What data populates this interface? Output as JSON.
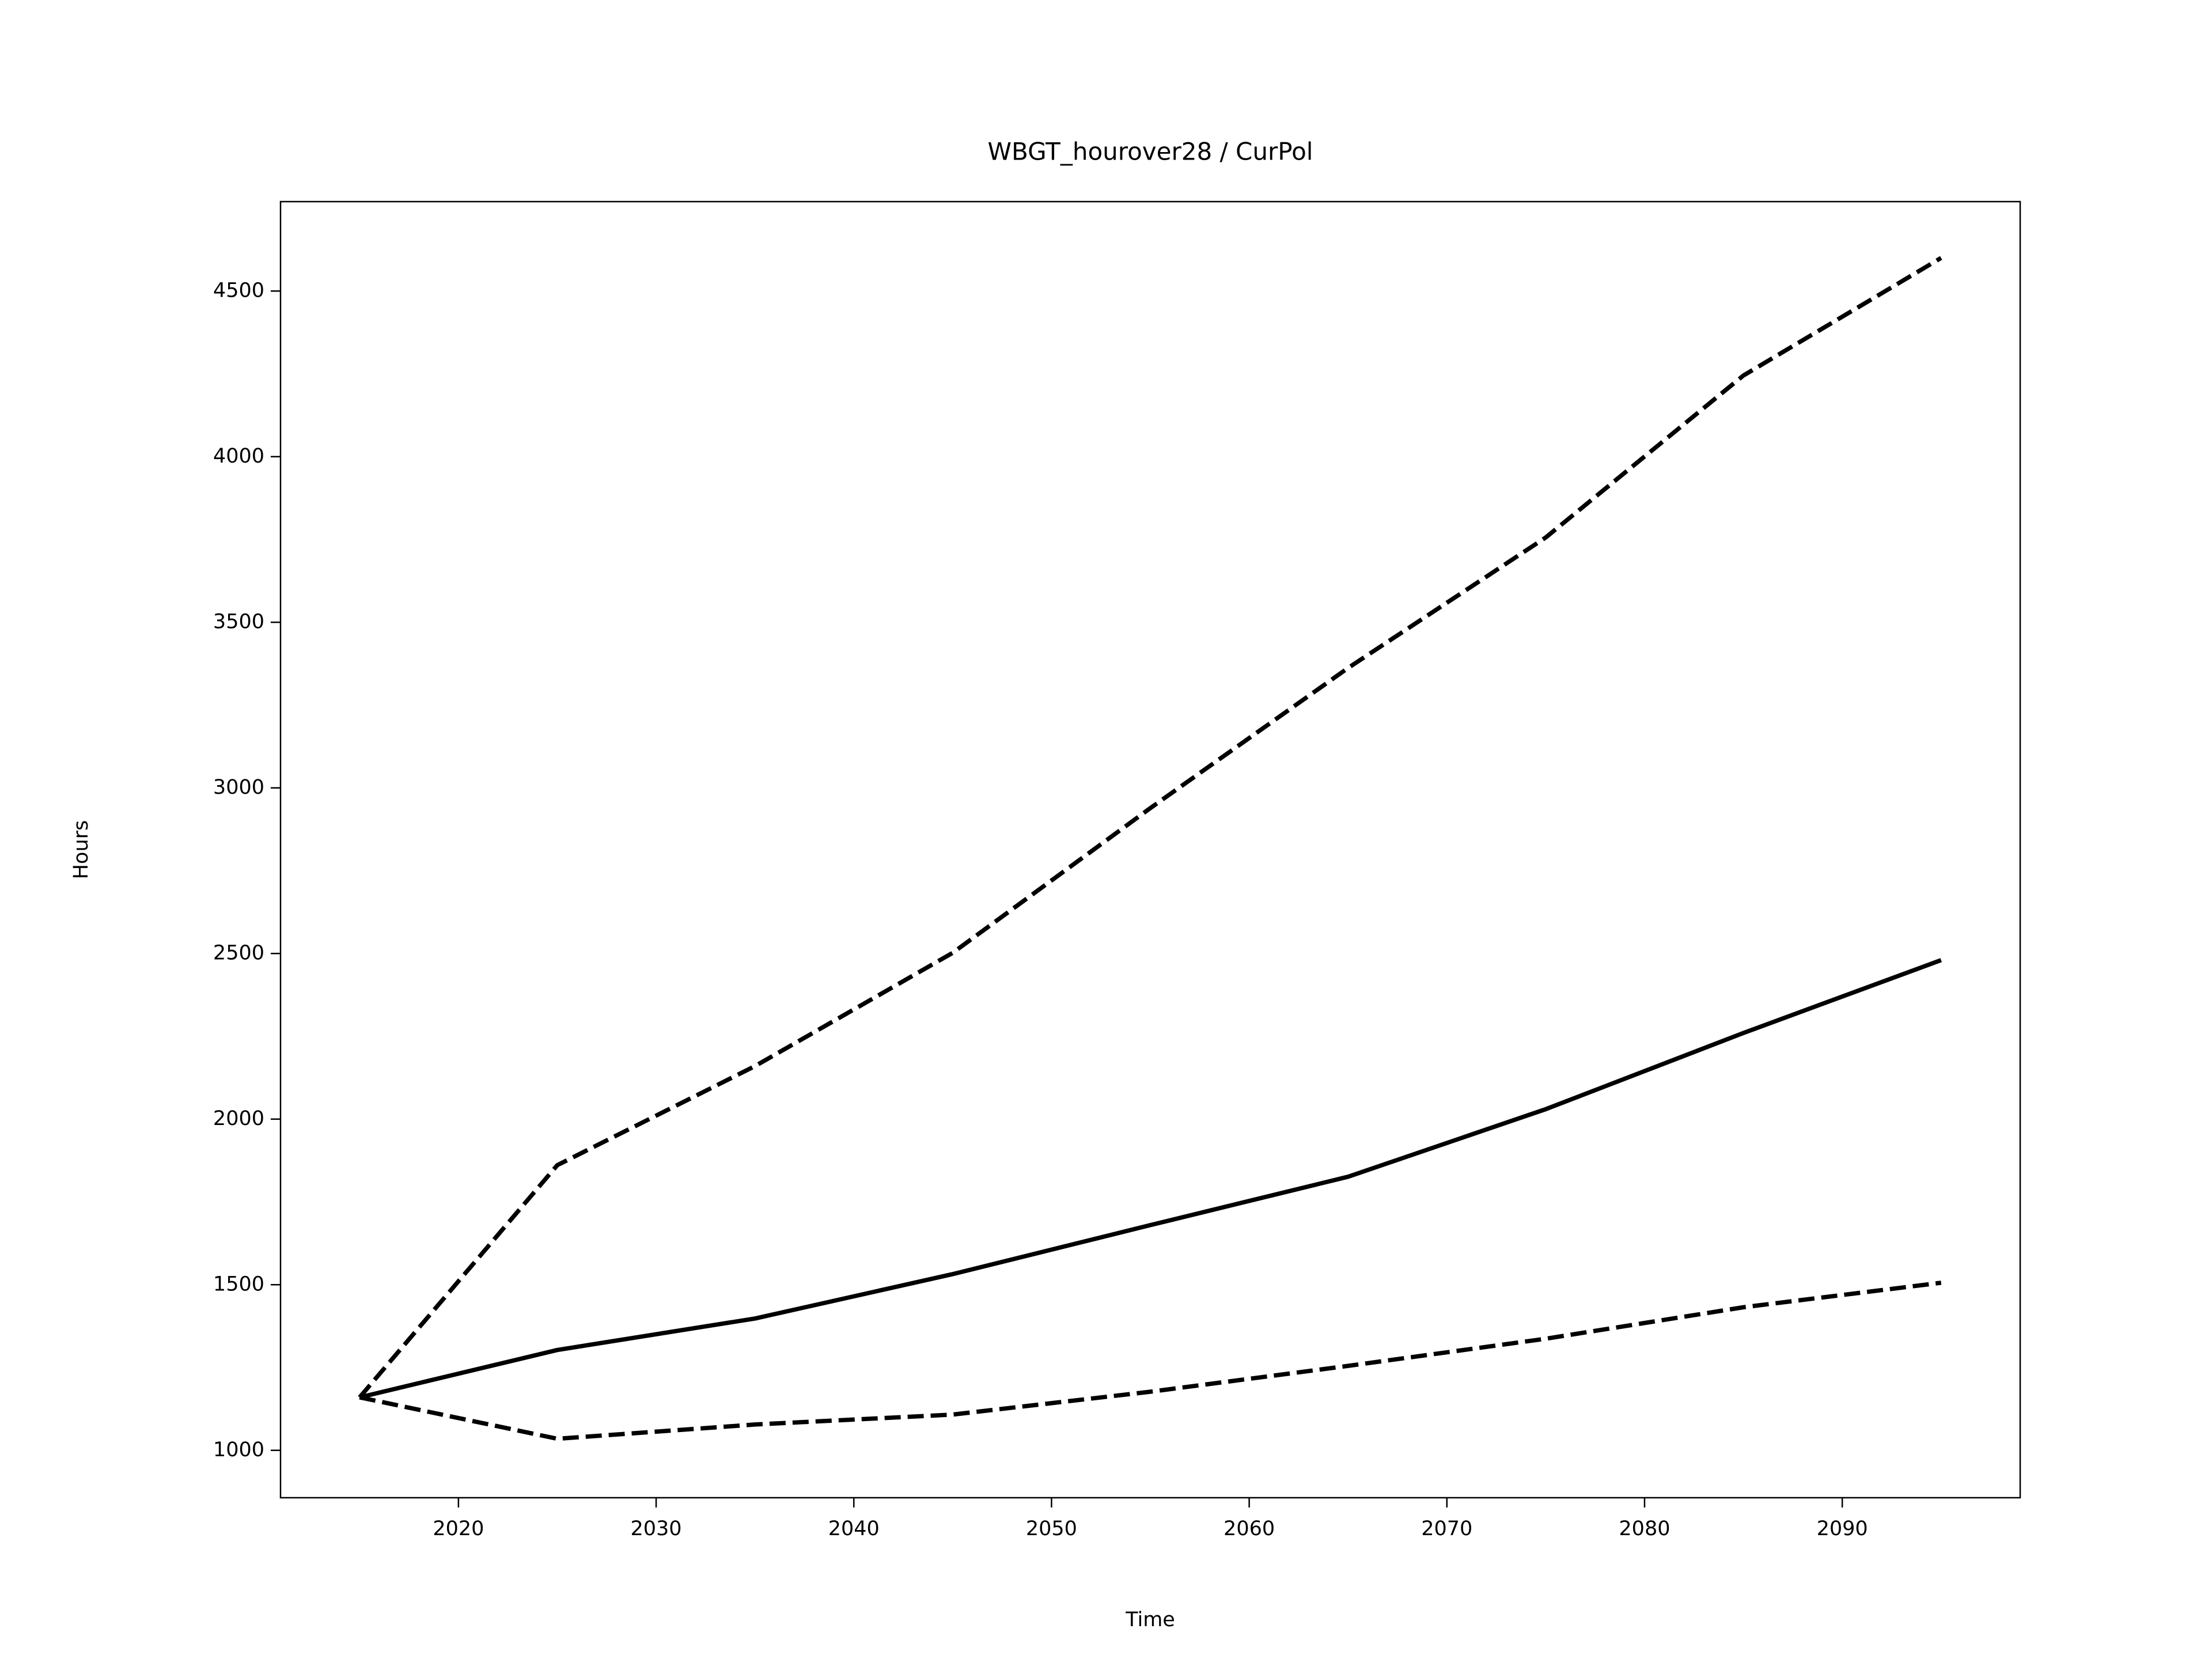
{
  "chart_data": {
    "type": "line",
    "title": "WBGT_hourover28 / CurPol",
    "xlabel": "Time",
    "ylabel": "Hours",
    "x": [
      2015,
      2025,
      2035,
      2045,
      2055,
      2065,
      2075,
      2085,
      2095
    ],
    "series": [
      {
        "color": "#000000",
        "style": "solid",
        "values": [
          1160,
          1303,
          1398,
          1532,
          1680,
          1826,
          2030,
          2260,
          2480
        ]
      },
      {
        "color": "#000000",
        "style": "dashed",
        "values": [
          1160,
          1861,
          2160,
          2502,
          2939,
          3362,
          3756,
          4245,
          4600
        ]
      },
      {
        "color": "#000000",
        "style": "dashed",
        "values": [
          1160,
          1035,
          1078,
          1108,
          1177,
          1255,
          1337,
          1432,
          1506
        ]
      }
    ],
    "xlim": [
      2011,
      2099
    ],
    "ylim": [
      857,
      4770
    ],
    "xticks": [
      2020,
      2030,
      2040,
      2050,
      2060,
      2070,
      2080,
      2090
    ],
    "yticks": [
      1000,
      1500,
      2000,
      2500,
      3000,
      3500,
      4000,
      4500
    ],
    "grid": false
  }
}
